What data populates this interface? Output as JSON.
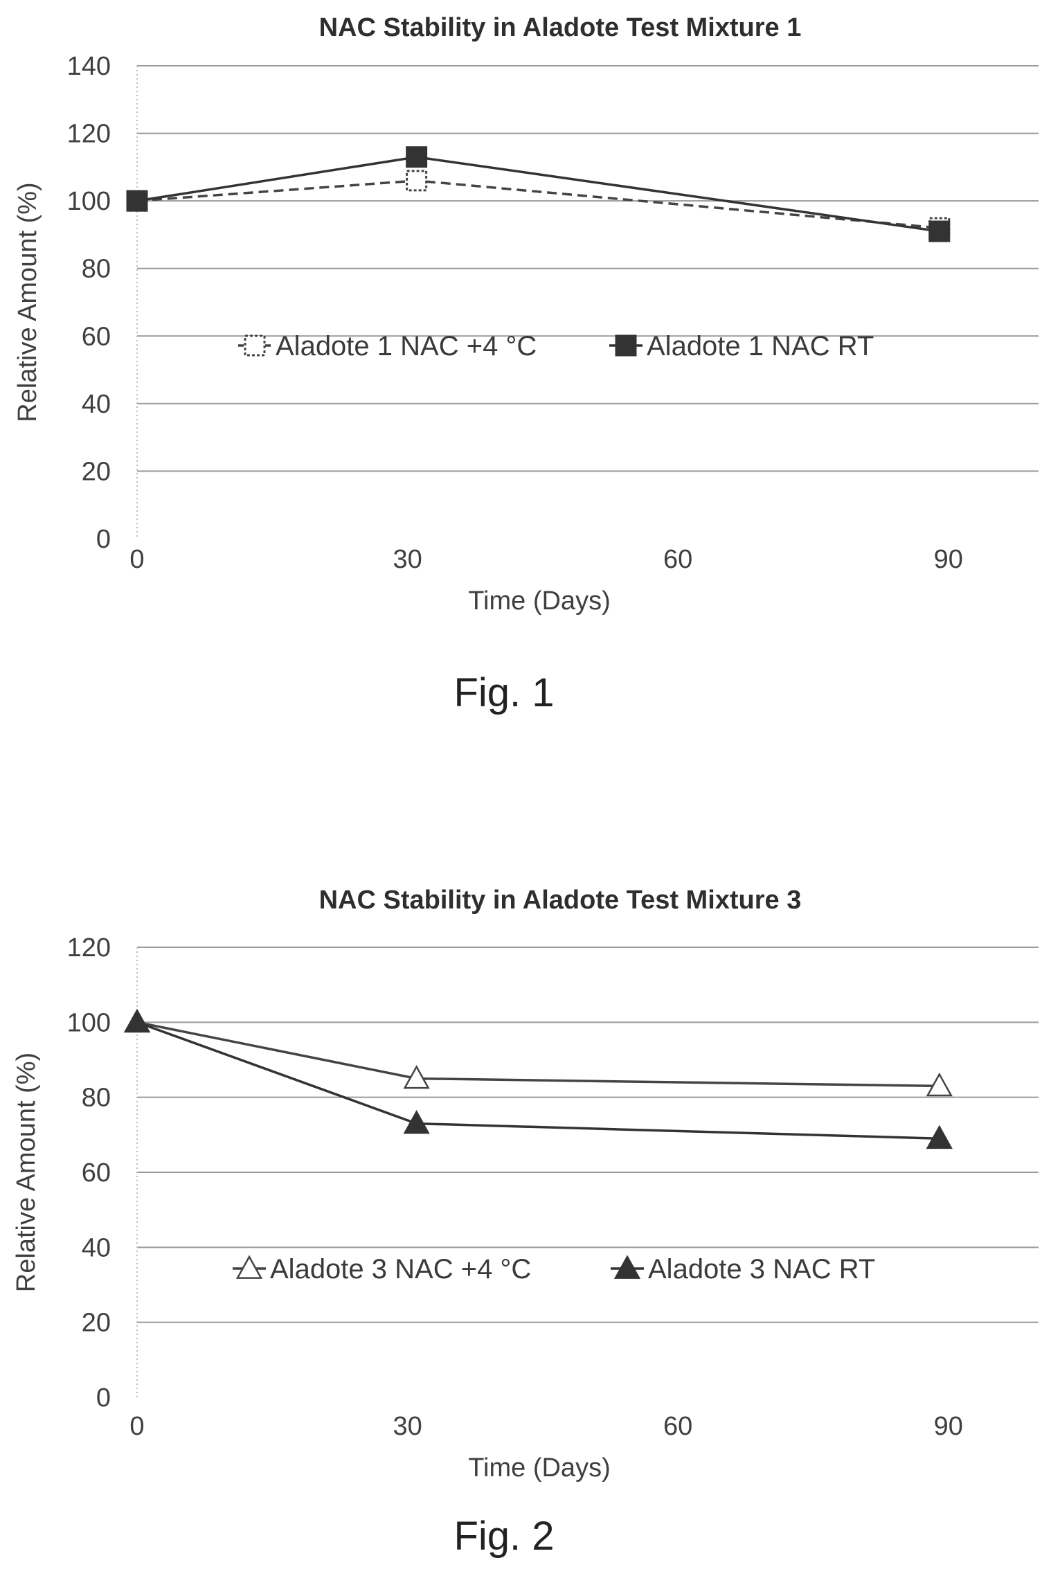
{
  "chart_data": [
    {
      "type": "line",
      "title": "NAC Stability in Aladote Test Mixture 1",
      "xlabel": "Time (Days)",
      "ylabel": "Relative Amount (%)",
      "xlim": [
        0,
        100
      ],
      "ylim": [
        0,
        140
      ],
      "x_ticks": [
        0,
        30,
        60,
        90
      ],
      "y_ticks": [
        0,
        20,
        40,
        60,
        80,
        100,
        120,
        140
      ],
      "grid": true,
      "legend_position": "middle",
      "series": [
        {
          "name": "Aladote 1 NAC +4 °C",
          "x": [
            0,
            31,
            89
          ],
          "y": [
            100,
            106,
            92
          ],
          "marker": "open-square",
          "line": "dashed",
          "color": "#444444"
        },
        {
          "name": "Aladote 1 NAC RT",
          "x": [
            0,
            31,
            89
          ],
          "y": [
            100,
            113,
            91
          ],
          "marker": "filled-square",
          "line": "solid",
          "color": "#333333"
        }
      ],
      "figure_label": "Fig. 1"
    },
    {
      "type": "line",
      "title": "NAC Stability in Aladote Test Mixture 3",
      "xlabel": "Time (Days)",
      "ylabel": "Relative Amount (%)",
      "xlim": [
        0,
        100
      ],
      "ylim": [
        0,
        120
      ],
      "x_ticks": [
        0,
        30,
        60,
        90
      ],
      "y_ticks": [
        0,
        20,
        40,
        60,
        80,
        100,
        120
      ],
      "grid": true,
      "legend_position": "lower-middle",
      "series": [
        {
          "name": "Aladote 3 NAC +4 °C",
          "x": [
            0,
            31,
            89
          ],
          "y": [
            100,
            85,
            83
          ],
          "marker": "open-triangle",
          "line": "solid",
          "color": "#444444"
        },
        {
          "name": "Aladote 3 NAC RT",
          "x": [
            0,
            31,
            89
          ],
          "y": [
            100,
            73,
            69
          ],
          "marker": "filled-triangle",
          "line": "solid",
          "color": "#333333"
        }
      ],
      "figure_label": "Fig. 2"
    }
  ]
}
